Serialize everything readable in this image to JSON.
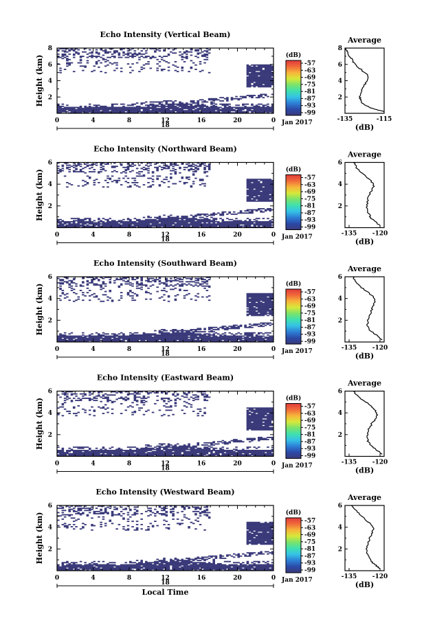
{
  "figure": {
    "date_label": "Jan 2017",
    "day_label": "18",
    "xlabel_bottom": "Local Time",
    "colorbar_unit": "(dB)",
    "colorbar_ticks": [
      "-57",
      "-63",
      "-69",
      "-75",
      "-81",
      "-87",
      "-93",
      "-99"
    ],
    "colors": {
      "echo": "#3a3a7a",
      "axis": "#000000",
      "colorscale": [
        "#3a3a7a",
        "#2b4aa8",
        "#2d7fd6",
        "#35c2e6",
        "#3fe0b0",
        "#7be36a",
        "#d7e83a",
        "#f7b43a",
        "#f06a3a",
        "#e03a3a"
      ]
    }
  },
  "chart_data": [
    {
      "type": "heatmap",
      "title": "Echo Intensity (Vertical Beam)",
      "ylabel": "Height (km)",
      "x_ticks": [
        "0",
        "4",
        "8",
        "12",
        "16",
        "20",
        "0"
      ],
      "y_ticks": [
        "8",
        "6",
        "4",
        "2"
      ],
      "xlim": [
        0,
        24
      ],
      "ylim": [
        0,
        8
      ],
      "profile": {
        "title": "Average",
        "xlabel": "(dB)",
        "x_ticks": [
          "-135",
          "-115"
        ],
        "xlim": [
          -135,
          -115
        ],
        "y_ticks": [
          "8",
          "6",
          "4",
          "2"
        ],
        "ylim": [
          0,
          8
        ],
        "points": [
          [
            -115,
            0.2
          ],
          [
            -118,
            0.4
          ],
          [
            -121,
            0.6
          ],
          [
            -124,
            0.9
          ],
          [
            -126,
            1.2
          ],
          [
            -127,
            1.6
          ],
          [
            -127.5,
            2.0
          ],
          [
            -127,
            2.5
          ],
          [
            -126.5,
            3.0
          ],
          [
            -125,
            3.5
          ],
          [
            -123.5,
            4.0
          ],
          [
            -123,
            4.4
          ],
          [
            -124,
            4.8
          ],
          [
            -126,
            5.2
          ],
          [
            -128,
            5.6
          ],
          [
            -130,
            6.0
          ],
          [
            -131,
            6.4
          ],
          [
            -132,
            6.8
          ],
          [
            -133,
            7.2
          ],
          [
            -134,
            7.6
          ],
          [
            -134.5,
            8.0
          ]
        ]
      }
    },
    {
      "type": "heatmap",
      "title": "Echo Intensity (Northward Beam)",
      "ylabel": "Height (km)",
      "x_ticks": [
        "0",
        "4",
        "8",
        "12",
        "16",
        "20",
        "0"
      ],
      "y_ticks": [
        "6",
        "4",
        "2"
      ],
      "xlim": [
        0,
        24
      ],
      "ylim": [
        0,
        6
      ],
      "profile": {
        "title": "Average",
        "xlabel": "(dB)",
        "x_ticks": [
          "-135",
          "-120"
        ],
        "xlim": [
          -137,
          -118
        ],
        "y_ticks": [
          "6",
          "4",
          "2"
        ],
        "ylim": [
          0,
          6
        ],
        "points": [
          [
            -120,
            0.2
          ],
          [
            -122,
            0.5
          ],
          [
            -124,
            0.8
          ],
          [
            -125,
            1.1
          ],
          [
            -126,
            1.5
          ],
          [
            -126.5,
            2.0
          ],
          [
            -126,
            2.5
          ],
          [
            -125.5,
            3.0
          ],
          [
            -124,
            3.4
          ],
          [
            -123,
            3.8
          ],
          [
            -124,
            4.2
          ],
          [
            -126,
            4.6
          ],
          [
            -129,
            5.0
          ],
          [
            -131,
            5.4
          ],
          [
            -132,
            5.8
          ],
          [
            -133,
            6.0
          ]
        ]
      }
    },
    {
      "type": "heatmap",
      "title": "Echo Intensity (Southward Beam)",
      "ylabel": "Height (km)",
      "x_ticks": [
        "0",
        "4",
        "8",
        "12",
        "16",
        "20",
        "0"
      ],
      "y_ticks": [
        "6",
        "4",
        "2"
      ],
      "xlim": [
        0,
        24
      ],
      "ylim": [
        0,
        6
      ],
      "profile": {
        "title": "Average",
        "xlabel": "(dB)",
        "x_ticks": [
          "-135",
          "-120"
        ],
        "xlim": [
          -137,
          -118
        ],
        "y_ticks": [
          "6",
          "4",
          "2"
        ],
        "ylim": [
          0,
          6
        ],
        "points": [
          [
            -119,
            0.2
          ],
          [
            -121,
            0.5
          ],
          [
            -123,
            0.8
          ],
          [
            -125,
            1.1
          ],
          [
            -126,
            1.5
          ],
          [
            -126,
            2.0
          ],
          [
            -125,
            2.5
          ],
          [
            -124,
            3.0
          ],
          [
            -123,
            3.4
          ],
          [
            -122.5,
            3.8
          ],
          [
            -123.5,
            4.2
          ],
          [
            -126,
            4.6
          ],
          [
            -129,
            5.0
          ],
          [
            -131,
            5.4
          ],
          [
            -132.5,
            5.8
          ],
          [
            -133,
            6.0
          ]
        ]
      }
    },
    {
      "type": "heatmap",
      "title": "Echo Intensity (Eastward Beam)",
      "ylabel": "Height (km)",
      "x_ticks": [
        "0",
        "4",
        "8",
        "12",
        "16",
        "20",
        "0"
      ],
      "y_ticks": [
        "6",
        "4",
        "2"
      ],
      "xlim": [
        0,
        24
      ],
      "ylim": [
        0,
        6
      ],
      "profile": {
        "title": "Average",
        "xlabel": "(dB)",
        "x_ticks": [
          "-135",
          "-120"
        ],
        "xlim": [
          -137,
          -118
        ],
        "y_ticks": [
          "6",
          "4",
          "2"
        ],
        "ylim": [
          0,
          6
        ],
        "points": [
          [
            -119,
            0.2
          ],
          [
            -121,
            0.5
          ],
          [
            -123,
            0.8
          ],
          [
            -125,
            1.1
          ],
          [
            -126,
            1.5
          ],
          [
            -126,
            2.0
          ],
          [
            -125.5,
            2.5
          ],
          [
            -124,
            3.0
          ],
          [
            -122.5,
            3.4
          ],
          [
            -121.5,
            3.8
          ],
          [
            -122,
            4.2
          ],
          [
            -124,
            4.6
          ],
          [
            -127,
            5.0
          ],
          [
            -130,
            5.4
          ],
          [
            -132,
            5.8
          ],
          [
            -133,
            6.0
          ]
        ]
      }
    },
    {
      "type": "heatmap",
      "title": "Echo Intensity (Westward Beam)",
      "ylabel": "Height (km)",
      "x_ticks": [
        "0",
        "4",
        "8",
        "12",
        "16",
        "20",
        "0"
      ],
      "y_ticks": [
        "6",
        "4",
        "2"
      ],
      "xlim": [
        0,
        24
      ],
      "ylim": [
        0,
        6
      ],
      "xlabel": "Local Time",
      "profile": {
        "title": "Average",
        "xlabel": "(dB)",
        "x_ticks": [
          "-135",
          "-120"
        ],
        "xlim": [
          -137,
          -118
        ],
        "y_ticks": [
          "6",
          "4",
          "2"
        ],
        "ylim": [
          0,
          6
        ],
        "points": [
          [
            -120,
            0.2
          ],
          [
            -122,
            0.5
          ],
          [
            -124,
            0.8
          ],
          [
            -125,
            1.1
          ],
          [
            -126,
            1.5
          ],
          [
            -126.5,
            2.0
          ],
          [
            -126,
            2.5
          ],
          [
            -125,
            3.0
          ],
          [
            -124,
            3.4
          ],
          [
            -123,
            3.8
          ],
          [
            -124,
            4.2
          ],
          [
            -126.5,
            4.6
          ],
          [
            -129,
            5.0
          ],
          [
            -131,
            5.4
          ],
          [
            -132.5,
            5.8
          ],
          [
            -134,
            6.0
          ]
        ]
      }
    }
  ]
}
